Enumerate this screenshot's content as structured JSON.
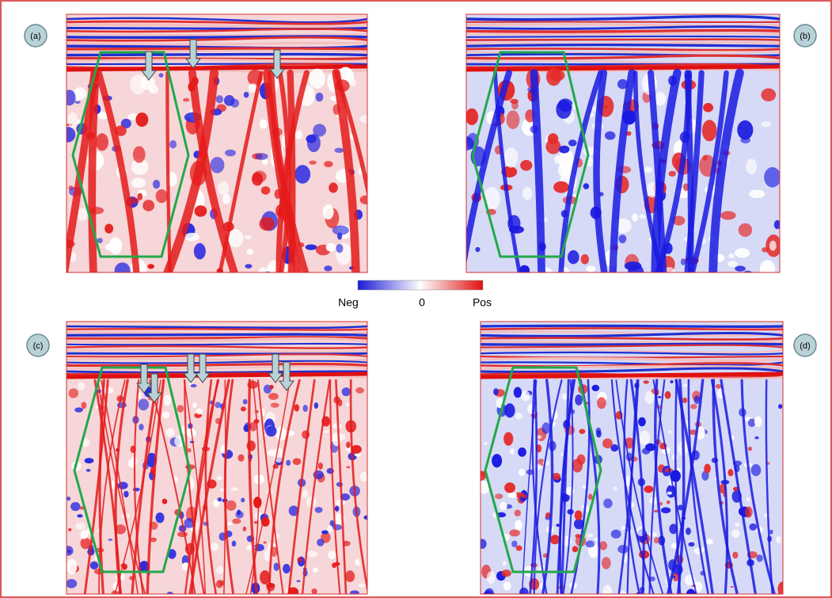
{
  "panels": [
    {
      "label": "(a)"
    },
    {
      "label": "(b)"
    },
    {
      "label": "(c)"
    },
    {
      "label": "(d)"
    }
  ],
  "colorbar": {
    "left_label": "Neg",
    "middle_label": 0,
    "right_label": "Pos"
  }
}
